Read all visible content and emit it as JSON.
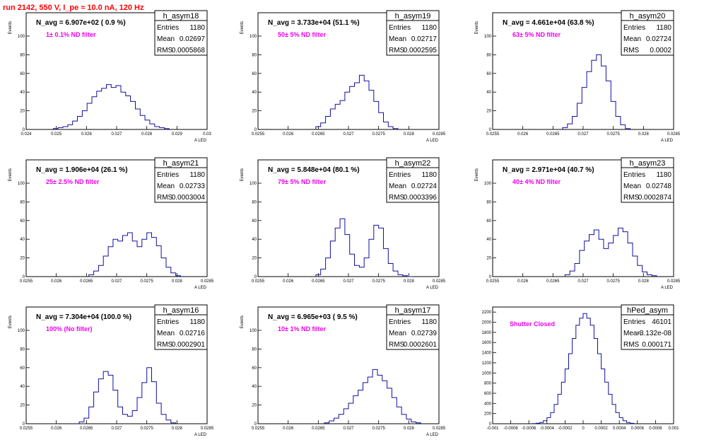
{
  "header": {
    "run_title": "run 2142,   550 V, I_pe ≈ 10.0 nA, 120 Hz",
    "color": "#ff0000"
  },
  "colors": {
    "hist": "#1010a0",
    "note": "#ee00ee",
    "axes": "#000000"
  },
  "chart_data": [
    {
      "type": "histogram",
      "name": "h_asym18",
      "navg": "N_avg = 6.907e+02 ( 0.9 %)",
      "note": "1± 0.1% ND filter",
      "stats": {
        "entries": "1180",
        "mean": "0.02697",
        "rms": "0.0005868"
      },
      "ylabel": "Events",
      "xlabel": "A LED",
      "xlim": [
        0.024,
        0.03
      ],
      "ylim": [
        0,
        125
      ],
      "yticks": [
        0,
        20,
        40,
        60,
        80,
        100
      ],
      "xtick_labels": [
        "0.024",
        "0.025",
        "0.026",
        "0.027",
        "0.028",
        "0.029",
        "0.03"
      ],
      "bins_x": [
        0.0249,
        0.02506,
        0.02522,
        0.02538,
        0.02554,
        0.0257,
        0.02586,
        0.02602,
        0.02618,
        0.02634,
        0.0265,
        0.02666,
        0.02682,
        0.02698,
        0.02714,
        0.0273,
        0.02746,
        0.02762,
        0.02778,
        0.02794,
        0.0281,
        0.02826,
        0.02842,
        0.02858
      ],
      "counts": [
        1,
        2,
        3,
        5,
        9,
        14,
        20,
        28,
        35,
        41,
        44,
        48,
        45,
        47,
        40,
        36,
        30,
        22,
        15,
        10,
        6,
        3,
        2,
        1
      ]
    },
    {
      "type": "histogram",
      "name": "h_asym19",
      "navg": "N_avg = 3.733e+04 (51.1 %)",
      "note": "50± 5% ND filter",
      "stats": {
        "entries": "1180",
        "mean": "0.02717",
        "rms": "0.0002595"
      },
      "ylabel": "Events",
      "xlabel": "A LED",
      "xlim": [
        0.0255,
        0.0285
      ],
      "ylim": [
        0,
        125
      ],
      "yticks": [
        0,
        20,
        40,
        60,
        80,
        100
      ],
      "xtick_labels": [
        "0.0255",
        "0.026",
        "0.0265",
        "0.027",
        "0.0275",
        "0.028",
        "0.0285"
      ],
      "bins_x": [
        0.02646,
        0.02654,
        0.02662,
        0.0267,
        0.02678,
        0.02686,
        0.02694,
        0.02702,
        0.0271,
        0.02718,
        0.02726,
        0.02734,
        0.02742,
        0.0275,
        0.02758,
        0.02766,
        0.02774
      ],
      "counts": [
        3,
        7,
        14,
        22,
        27,
        31,
        40,
        46,
        50,
        58,
        52,
        42,
        30,
        18,
        8,
        3,
        1
      ]
    },
    {
      "type": "histogram",
      "name": "h_asym20",
      "navg": "N_avg = 4.661e+04 (63.8 %)",
      "note": "63± 5% ND filter",
      "stats": {
        "entries": "1180",
        "mean": "0.02724",
        "rms": "0.0002"
      },
      "ylabel": "Events",
      "xlabel": "A LED",
      "xlim": [
        0.0255,
        0.0285
      ],
      "ylim": [
        0,
        125
      ],
      "yticks": [
        0,
        20,
        40,
        60,
        80,
        100
      ],
      "xtick_labels": [
        "0.0255",
        "0.026",
        "0.0265",
        "0.027",
        "0.0275",
        "0.028",
        "0.0285"
      ],
      "bins_x": [
        0.02666,
        0.02674,
        0.02682,
        0.0269,
        0.02698,
        0.02706,
        0.02714,
        0.02722,
        0.0273,
        0.02738,
        0.02746,
        0.02754,
        0.02762,
        0.0277
      ],
      "counts": [
        2,
        6,
        14,
        28,
        45,
        62,
        74,
        80,
        68,
        52,
        30,
        14,
        5,
        1
      ]
    },
    {
      "type": "histogram",
      "name": "h_asym21",
      "navg": "N_avg = 1.906e+04 (26.1 %)",
      "note": "25± 2.5% ND filter",
      "stats": {
        "entries": "1180",
        "mean": "0.02733",
        "rms": "0.0003004"
      },
      "ylabel": "Events",
      "xlabel": "A LED",
      "xlim": [
        0.0255,
        0.0285
      ],
      "ylim": [
        0,
        125
      ],
      "yticks": [
        0,
        20,
        40,
        60,
        80,
        100
      ],
      "xtick_labels": [
        "0.0255",
        "0.026",
        "0.0265",
        "0.027",
        "0.0275",
        "0.028",
        "0.0285"
      ],
      "bins_x": [
        0.02654,
        0.02662,
        0.0267,
        0.02678,
        0.02686,
        0.02694,
        0.02702,
        0.0271,
        0.02718,
        0.02726,
        0.02734,
        0.02742,
        0.0275,
        0.02758,
        0.02766,
        0.02774,
        0.02782,
        0.0279,
        0.02798
      ],
      "counts": [
        2,
        6,
        12,
        22,
        32,
        40,
        38,
        44,
        47,
        38,
        32,
        40,
        47,
        42,
        33,
        20,
        10,
        4,
        1
      ]
    },
    {
      "type": "histogram",
      "name": "h_asym22",
      "navg": "N_avg = 5.848e+04 (80.1 %)",
      "note": "79± 5% ND filter",
      "stats": {
        "entries": "1180",
        "mean": "0.02724",
        "rms": "0.0003396"
      },
      "ylabel": "Events",
      "xlabel": "A LED",
      "xlim": [
        0.0255,
        0.0285
      ],
      "ylim": [
        0,
        125
      ],
      "yticks": [
        0,
        20,
        40,
        60,
        80,
        100
      ],
      "xtick_labels": [
        "0.0255",
        "0.026",
        "0.0265",
        "0.027",
        "0.0275",
        "0.028",
        "0.0285"
      ],
      "bins_x": [
        0.02646,
        0.02654,
        0.02662,
        0.0267,
        0.02678,
        0.02686,
        0.02694,
        0.02702,
        0.0271,
        0.02718,
        0.02726,
        0.02734,
        0.02742,
        0.0275,
        0.02758,
        0.02766,
        0.02774,
        0.02782,
        0.0279,
        0.02798
      ],
      "counts": [
        2,
        8,
        20,
        38,
        52,
        62,
        45,
        24,
        12,
        10,
        20,
        40,
        55,
        52,
        30,
        14,
        6,
        2,
        1,
        0
      ]
    },
    {
      "type": "histogram",
      "name": "h_asym23",
      "navg": "N_avg = 2.971e+04 (40.7 %)",
      "note": "40± 4% ND filter",
      "stats": {
        "entries": "1180",
        "mean": "0.02748",
        "rms": "0.0002874"
      },
      "ylabel": "Events",
      "xlabel": "A LED",
      "xlim": [
        0.0255,
        0.0285
      ],
      "ylim": [
        0,
        125
      ],
      "yticks": [
        0,
        20,
        40,
        60,
        80,
        100
      ],
      "xtick_labels": [
        "0.0255",
        "0.026",
        "0.0265",
        "0.027",
        "0.0275",
        "0.028",
        "0.0285"
      ],
      "bins_x": [
        0.0267,
        0.02678,
        0.02686,
        0.02694,
        0.02702,
        0.0271,
        0.02718,
        0.02726,
        0.02734,
        0.02742,
        0.0275,
        0.02758,
        0.02766,
        0.02774,
        0.02782,
        0.0279,
        0.02798,
        0.02806,
        0.02814
      ],
      "counts": [
        2,
        6,
        14,
        28,
        38,
        45,
        50,
        40,
        30,
        36,
        44,
        52,
        48,
        36,
        22,
        12,
        5,
        2,
        1
      ]
    },
    {
      "type": "histogram",
      "name": "h_asym16",
      "navg": "N_avg = 7.304e+04 (100.0 %)",
      "note": "100% (No filter)",
      "stats": {
        "entries": "1180",
        "mean": "0.02716",
        "rms": "0.0002901"
      },
      "ylabel": "Events",
      "xlabel": "A LED",
      "xlim": [
        0.0255,
        0.0285
      ],
      "ylim": [
        0,
        125
      ],
      "yticks": [
        0,
        20,
        40,
        60,
        80,
        100
      ],
      "xtick_labels": [
        "0.0255",
        "0.026",
        "0.0265",
        "0.027",
        "0.0275",
        "0.028",
        "0.0285"
      ],
      "bins_x": [
        0.02638,
        0.02646,
        0.02654,
        0.02662,
        0.0267,
        0.02678,
        0.02686,
        0.02694,
        0.02702,
        0.0271,
        0.02718,
        0.02726,
        0.02734,
        0.02742,
        0.0275,
        0.02758,
        0.02766,
        0.02774,
        0.02782,
        0.0279
      ],
      "counts": [
        2,
        6,
        18,
        34,
        48,
        56,
        52,
        36,
        18,
        10,
        8,
        14,
        28,
        44,
        60,
        45,
        22,
        10,
        4,
        1
      ]
    },
    {
      "type": "histogram",
      "name": "h_asym17",
      "navg": "N_avg = 6.965e+03 ( 9.5 %)",
      "note": "10± 1% ND filter",
      "stats": {
        "entries": "1180",
        "mean": "0.02739",
        "rms": "0.0002601"
      },
      "ylabel": "Events",
      "xlabel": "A LED",
      "xlim": [
        0.0255,
        0.0285
      ],
      "ylim": [
        0,
        125
      ],
      "yticks": [
        0,
        20,
        40,
        60,
        80,
        100
      ],
      "xtick_labels": [
        "0.0255",
        "0.026",
        "0.0265",
        "0.027",
        "0.0275",
        "0.028",
        "0.0285"
      ],
      "bins_x": [
        0.0266,
        0.02668,
        0.02676,
        0.02684,
        0.02692,
        0.027,
        0.02708,
        0.02716,
        0.02724,
        0.02732,
        0.0274,
        0.02748,
        0.02756,
        0.02764,
        0.02772,
        0.0278,
        0.02788,
        0.02796,
        0.02804,
        0.02812
      ],
      "counts": [
        1,
        3,
        6,
        10,
        16,
        22,
        30,
        36,
        44,
        50,
        58,
        52,
        46,
        38,
        28,
        18,
        10,
        5,
        2,
        1
      ]
    },
    {
      "type": "histogram",
      "name": "hPed_asym",
      "navg": "",
      "note": "Shutter Closed",
      "stats": {
        "entries": "46101",
        "mean": "-3.132e-08",
        "rms": "0.000171"
      },
      "ylabel": "",
      "xlabel": "",
      "xlim": [
        -0.001,
        0.001
      ],
      "ylim": [
        0,
        2300
      ],
      "yticks": [
        0,
        200,
        400,
        600,
        800,
        1000,
        1200,
        1400,
        1600,
        1800,
        2000,
        2200
      ],
      "xtick_labels": [
        "-0.001",
        "-0.0008",
        "-0.0006",
        "-0.0004",
        "-0.0002",
        "0",
        "0.0002",
        "0.0004",
        "0.0006",
        "0.0008",
        "0.001"
      ],
      "bins_x": [
        -0.00056,
        -0.00052,
        -0.00048,
        -0.00044,
        -0.0004,
        -0.00036,
        -0.00032,
        -0.00028,
        -0.00024,
        -0.0002,
        -0.00016,
        -0.00012,
        -8e-05,
        -4e-05,
        0,
        4e-05,
        8e-05,
        0.00012,
        0.00016,
        0.0002,
        0.00024,
        0.00028,
        0.00032,
        0.00036,
        0.0004,
        0.00044,
        0.00048,
        0.00052
      ],
      "counts": [
        3,
        10,
        25,
        60,
        120,
        220,
        380,
        580,
        820,
        1080,
        1380,
        1680,
        1940,
        2080,
        2170,
        2080,
        1940,
        1680,
        1380,
        1080,
        820,
        580,
        380,
        220,
        120,
        60,
        25,
        8
      ]
    }
  ]
}
